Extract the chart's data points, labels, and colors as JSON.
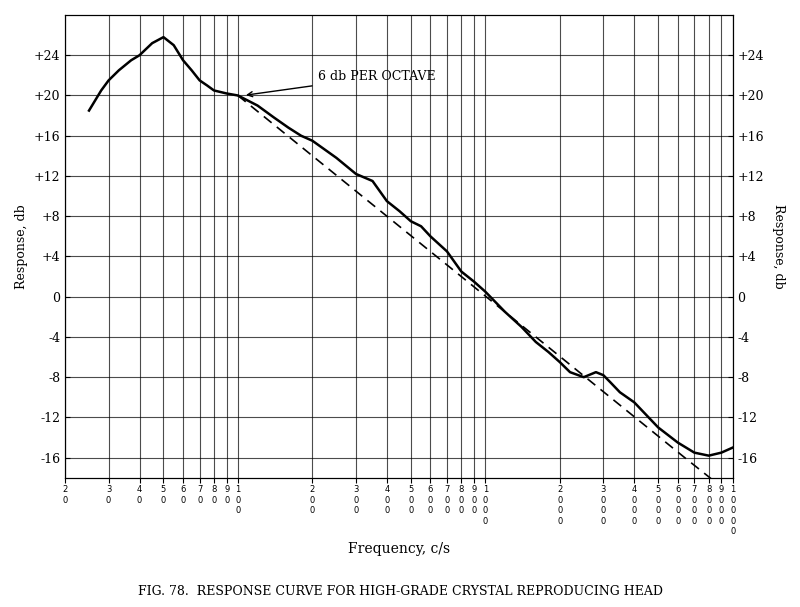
{
  "title": "FIG. 78.  RESPONSE CURVE FOR HIGH-GRADE CRYSTAL REPRODUCING HEAD",
  "xlabel": "Frequency, c/s",
  "ylabel_left": "Response, db",
  "ylabel_right": "Response, db",
  "annotation": "6 db PER OCTAVE",
  "xlim": [
    20,
    10000
  ],
  "ylim": [
    -18,
    28
  ],
  "yticks": [
    -16,
    -12,
    -8,
    -4,
    0,
    4,
    8,
    12,
    16,
    20,
    24
  ],
  "ytick_labels": [
    "-16",
    "-12",
    "-8",
    "-4",
    "0",
    "+4",
    "+8",
    "+12",
    "+16",
    "+20",
    "+24"
  ],
  "bg_color": "#ffffff",
  "curve_color": "#000000",
  "dashed_color": "#000000",
  "solid_curve_x": [
    25,
    28,
    30,
    33,
    37,
    40,
    45,
    50,
    55,
    60,
    65,
    70,
    75,
    80,
    90,
    100,
    120,
    140,
    160,
    180,
    200,
    250,
    300,
    350,
    400,
    450,
    500,
    550,
    600,
    700,
    800,
    900,
    1000,
    1200,
    1400,
    1600,
    1800,
    2000,
    2200,
    2500,
    2800,
    3000,
    3200,
    3500,
    4000,
    5000,
    6000,
    7000,
    8000,
    9000,
    10000
  ],
  "solid_curve_y": [
    18.5,
    20.5,
    21.5,
    22.5,
    23.5,
    24.0,
    25.2,
    25.8,
    25.0,
    23.5,
    22.5,
    21.5,
    21.0,
    20.5,
    20.2,
    20.0,
    19.0,
    17.8,
    16.8,
    16.0,
    15.5,
    13.8,
    12.2,
    11.5,
    9.5,
    8.5,
    7.5,
    7.0,
    6.0,
    4.5,
    2.5,
    1.5,
    0.5,
    -1.5,
    -3.0,
    -4.5,
    -5.5,
    -6.5,
    -7.5,
    -8.0,
    -7.5,
    -7.8,
    -8.5,
    -9.5,
    -10.5,
    -13.0,
    -14.5,
    -15.5,
    -15.8,
    -15.5,
    -15.0
  ],
  "dashed_line_x": [
    100,
    200,
    400,
    800,
    1600,
    3200,
    6400,
    10000
  ],
  "dashed_line_y": [
    20.0,
    14.0,
    8.0,
    2.0,
    -4.0,
    -10.0,
    -16.0,
    -19.8
  ]
}
